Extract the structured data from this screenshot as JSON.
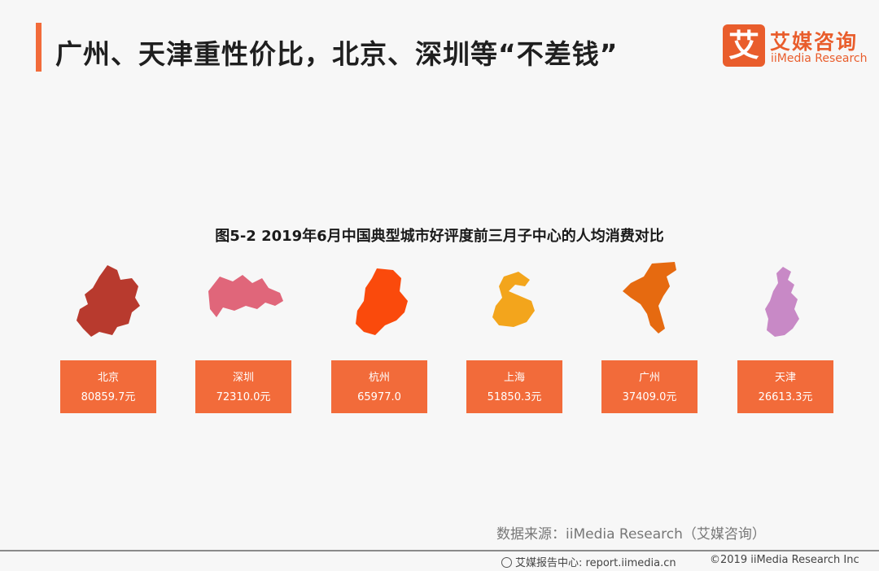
{
  "header": {
    "title": "广州、天津重性价比，北京、深圳等“不差钱”",
    "logo_mark": "艾",
    "logo_cn": "艾媒咨询",
    "logo_en": "iiMedia Research"
  },
  "chart_data": {
    "type": "table",
    "title": "图5-2 2019年6月中国典型城市好评度前三月子中心的人均消费对比",
    "categories": [
      "北京",
      "深圳",
      "杭州",
      "上海",
      "广州",
      "天津"
    ],
    "value_labels": [
      "80859.7元",
      "72310.0元",
      "65977.0",
      "51850.3元",
      "37409.0元",
      "26613.3元"
    ],
    "values": [
      80859.7,
      72310.0,
      65977.0,
      51850.3,
      37409.0,
      26613.3
    ],
    "unit": "元",
    "map_colors": [
      "#b83a2e",
      "#e0667a",
      "#fa4a0c",
      "#f3a51c",
      "#e66a10",
      "#c889c6"
    ]
  },
  "footer": {
    "source": "数据来源：iiMedia Research（艾媒咨询）",
    "report_center": "艾媒报告中心: report.iimedia.cn",
    "copyright": "©2019  iiMedia Research  Inc"
  }
}
